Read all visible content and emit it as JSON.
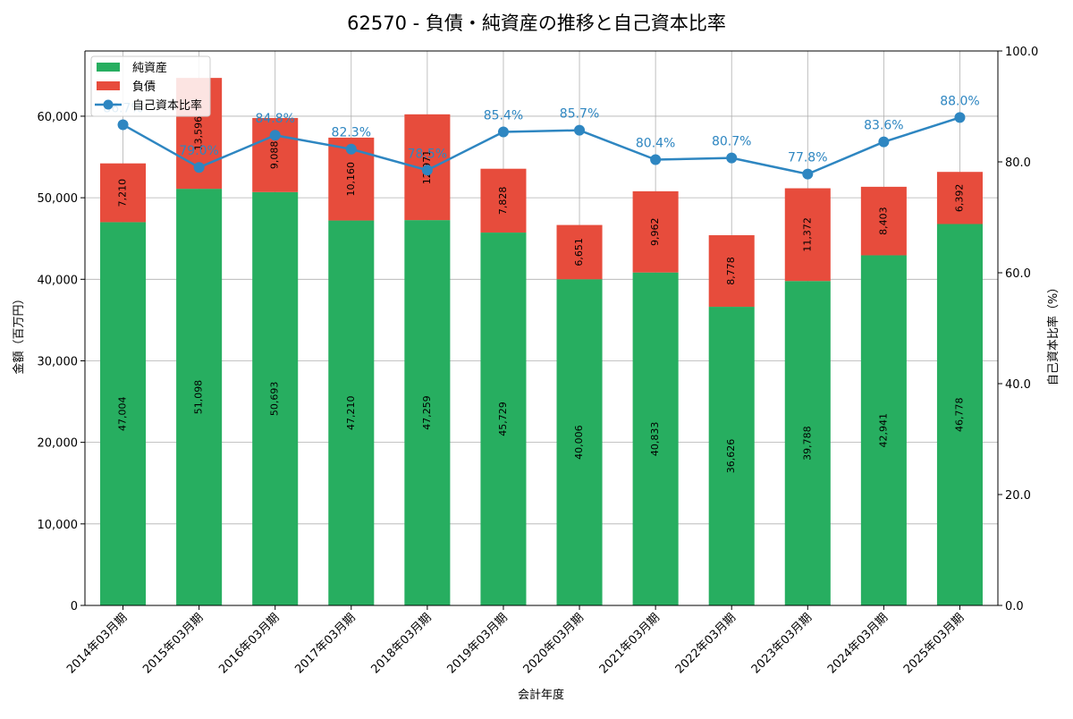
{
  "chart_data": {
    "type": "bar",
    "stacked": true,
    "title": "62570 - 負債・純資産の推移と自己資本比率",
    "xlabel": "会計年度",
    "ylabel": "金額（百万円）",
    "y2label": "自己資本比率（%）",
    "categories": [
      "2014年03月期",
      "2015年03月期",
      "2016年03月期",
      "2017年03月期",
      "2018年03月期",
      "2019年03月期",
      "2020年03月期",
      "2021年03月期",
      "2022年03月期",
      "2023年03月期",
      "2024年03月期",
      "2025年03月期"
    ],
    "series": [
      {
        "name": "純資産",
        "color": "#27ae60",
        "values": [
          47004,
          51098,
          50693,
          47210,
          47259,
          45729,
          40006,
          40833,
          36626,
          39788,
          42941,
          46778
        ],
        "labels": [
          "47,004",
          "51,098",
          "50,693",
          "47,210",
          "47,259",
          "45,729",
          "40,006",
          "40,833",
          "36,626",
          "39,788",
          "42,941",
          "46,778"
        ]
      },
      {
        "name": "負債",
        "color": "#e74c3c",
        "values": [
          7210,
          13596,
          9088,
          10160,
          12971,
          7828,
          6651,
          9962,
          8778,
          11372,
          8403,
          6392
        ],
        "labels": [
          "7,210",
          "13,596",
          "9,088",
          "10,160",
          "12,971",
          "7,828",
          "6,651",
          "9,962",
          "8,778",
          "11,372",
          "8,403",
          "6,392"
        ]
      }
    ],
    "line": {
      "name": "自己資本比率",
      "color": "#2e86c1",
      "values": [
        86.7,
        79.0,
        84.8,
        82.3,
        78.5,
        85.4,
        85.7,
        80.4,
        80.7,
        77.8,
        83.6,
        88.0
      ],
      "labels": [
        "86.7%",
        "79.0%",
        "84.8%",
        "82.3%",
        "78.5%",
        "85.4%",
        "85.7%",
        "80.4%",
        "80.7%",
        "77.8%",
        "83.6%",
        "88.0%"
      ]
    },
    "yticks": [
      0,
      10000,
      20000,
      30000,
      40000,
      50000,
      60000
    ],
    "ytick_labels": [
      "0",
      "10,000",
      "20,000",
      "30,000",
      "40,000",
      "50,000",
      "60,000"
    ],
    "ylim": [
      0,
      68000
    ],
    "y2ticks": [
      0,
      20,
      40,
      60,
      80,
      100
    ],
    "y2tick_labels": [
      "0.0",
      "20.0",
      "40.0",
      "60.0",
      "80.0",
      "100.0"
    ],
    "y2lim": [
      0,
      100
    ],
    "grid": true,
    "legend_position": "top-left"
  }
}
